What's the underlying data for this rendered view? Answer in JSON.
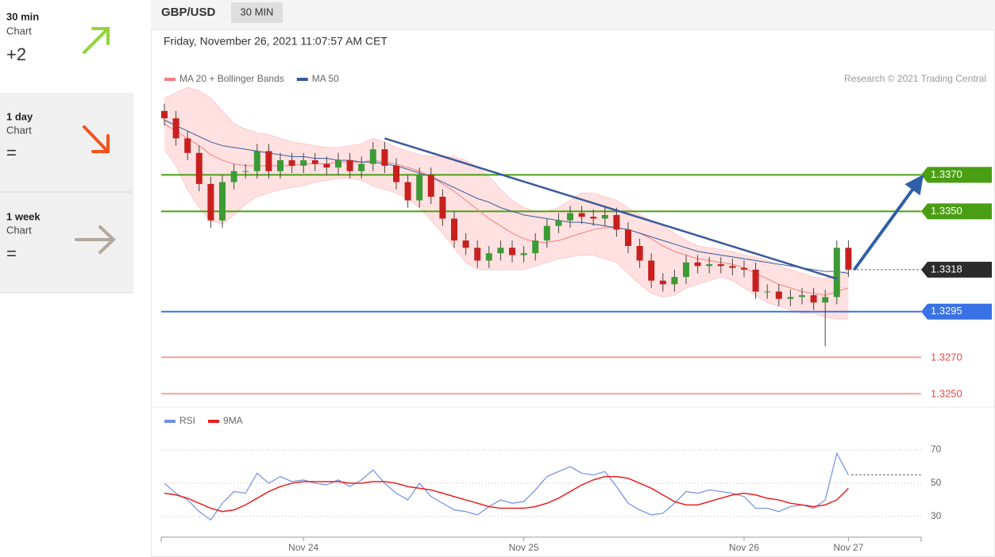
{
  "sidebar": [
    {
      "period": "30 min",
      "label": "Chart",
      "score": "+2"
    },
    {
      "period": "1 day",
      "label": "Chart",
      "score": "="
    },
    {
      "period": "1 week",
      "label": "Chart",
      "score": "="
    }
  ],
  "header": {
    "symbol": "GBP/USD",
    "interval": "30 MIN",
    "date": "Friday, November 26, 2021 11:07:57 AM CET"
  },
  "credit": "Research © 2021 Trading Central",
  "chart_data": [
    {
      "type": "candlestick",
      "up_color": "#3d9b35",
      "down_color": "#c8201e",
      "open": [
        1.3405,
        1.3401,
        1.339,
        1.3382,
        1.3365,
        1.3345,
        1.3366,
        1.3372,
        1.3372,
        1.3383,
        1.3372,
        1.3378,
        1.3375,
        1.3378,
        1.3376,
        1.3374,
        1.3378,
        1.3372,
        1.3376,
        1.3384,
        1.3375,
        1.3366,
        1.3356,
        1.337,
        1.3358,
        1.3346,
        1.3334,
        1.333,
        1.3323,
        1.3327,
        1.333,
        1.3326,
        1.3327,
        1.3334,
        1.3342,
        1.3345,
        1.3349,
        1.3347,
        1.3346,
        1.3348,
        1.334,
        1.3331,
        1.3323,
        1.3312,
        1.331,
        1.3314,
        1.3322,
        1.332,
        1.3321,
        1.332,
        1.3319,
        1.3318,
        1.3306,
        1.3306,
        1.3302,
        1.3303,
        1.3304,
        1.33,
        1.3303,
        1.333
      ],
      "high": [
        1.3409,
        1.3405,
        1.3394,
        1.3386,
        1.3369,
        1.337,
        1.3376,
        1.3376,
        1.3387,
        1.3387,
        1.3382,
        1.3382,
        1.3382,
        1.3382,
        1.338,
        1.3382,
        1.3382,
        1.338,
        1.3388,
        1.3388,
        1.3379,
        1.337,
        1.3374,
        1.3374,
        1.3362,
        1.335,
        1.3338,
        1.3334,
        1.3331,
        1.3334,
        1.3334,
        1.3331,
        1.3338,
        1.3346,
        1.3349,
        1.3353,
        1.3353,
        1.3351,
        1.3352,
        1.3352,
        1.3344,
        1.3335,
        1.3327,
        1.3316,
        1.3318,
        1.3326,
        1.3326,
        1.3325,
        1.3325,
        1.3324,
        1.3323,
        1.3322,
        1.331,
        1.331,
        1.3307,
        1.3308,
        1.3308,
        1.3307,
        1.3334,
        1.3334
      ],
      "low": [
        1.3397,
        1.3386,
        1.3378,
        1.3361,
        1.3341,
        1.3341,
        1.3362,
        1.3368,
        1.3368,
        1.3368,
        1.3368,
        1.3371,
        1.3371,
        1.3372,
        1.337,
        1.337,
        1.3368,
        1.3368,
        1.3372,
        1.3371,
        1.3362,
        1.3352,
        1.3352,
        1.3354,
        1.3342,
        1.333,
        1.3326,
        1.3319,
        1.3319,
        1.3323,
        1.3322,
        1.3322,
        1.3323,
        1.333,
        1.3338,
        1.3341,
        1.3343,
        1.3342,
        1.3342,
        1.3336,
        1.3327,
        1.3319,
        1.3308,
        1.3306,
        1.3306,
        1.331,
        1.3316,
        1.3316,
        1.3316,
        1.3315,
        1.3314,
        1.3302,
        1.3302,
        1.3298,
        1.3298,
        1.3299,
        1.3296,
        1.3276,
        1.3299,
        1.3314
      ],
      "close": [
        1.3401,
        1.339,
        1.3382,
        1.3365,
        1.3345,
        1.3366,
        1.3372,
        1.3372,
        1.3383,
        1.3372,
        1.3378,
        1.3375,
        1.3378,
        1.3376,
        1.3374,
        1.3378,
        1.3372,
        1.3376,
        1.3384,
        1.3375,
        1.3366,
        1.3356,
        1.337,
        1.3358,
        1.3346,
        1.3334,
        1.333,
        1.3323,
        1.3327,
        1.333,
        1.3326,
        1.3327,
        1.3334,
        1.3342,
        1.3345,
        1.3349,
        1.3347,
        1.3346,
        1.3348,
        1.334,
        1.3331,
        1.3323,
        1.3312,
        1.331,
        1.3314,
        1.3322,
        1.332,
        1.3321,
        1.332,
        1.3319,
        1.3318,
        1.3306,
        1.3306,
        1.3302,
        1.3303,
        1.3304,
        1.33,
        1.3303,
        1.333,
        1.3318
      ],
      "series": [
        {
          "name": "MA 20 + Bollinger Bands",
          "color": "#f47f7f",
          "values": [
            1.3398,
            1.3394,
            1.339,
            1.3386,
            1.3381,
            1.3378,
            1.3376,
            1.3375,
            1.3375,
            1.3375,
            1.3375,
            1.3375,
            1.3376,
            1.3376,
            1.3376,
            1.3377,
            1.3377,
            1.3377,
            1.3378,
            1.3377,
            1.3376,
            1.3374,
            1.3372,
            1.3369,
            1.3365,
            1.3361,
            1.3356,
            1.3351,
            1.3346,
            1.3342,
            1.3338,
            1.3335,
            1.3333,
            1.3333,
            1.3334,
            1.3336,
            1.3338,
            1.334,
            1.3341,
            1.3341,
            1.334,
            1.3338,
            1.3335,
            1.3331,
            1.3328,
            1.3326,
            1.3324,
            1.3323,
            1.3322,
            1.3321,
            1.3319,
            1.3316,
            1.3313,
            1.331,
            1.3308,
            1.3306,
            1.3305,
            1.3304,
            1.3306,
            1.3308
          ]
        },
        {
          "name": "MA 50",
          "color": "#34589a",
          "values": [
            1.34,
            1.3397,
            1.3394,
            1.3391,
            1.3388,
            1.3386,
            1.3385,
            1.3384,
            1.3383,
            1.3382,
            1.3381,
            1.338,
            1.338,
            1.3379,
            1.3379,
            1.3378,
            1.3378,
            1.3377,
            1.3377,
            1.3376,
            1.3375,
            1.3373,
            1.3371,
            1.3369,
            1.3366,
            1.3363,
            1.336,
            1.3357,
            1.3355,
            1.3352,
            1.335,
            1.3348,
            1.3347,
            1.3346,
            1.3345,
            1.3344,
            1.3344,
            1.3343,
            1.3342,
            1.3341,
            1.334,
            1.3338,
            1.3336,
            1.3334,
            1.3332,
            1.333,
            1.3328,
            1.3327,
            1.3326,
            1.3325,
            1.3324,
            1.3323,
            1.3322,
            1.3321,
            1.332,
            1.3319,
            1.3318,
            1.3317,
            1.3317,
            1.3316
          ]
        }
      ],
      "band": {
        "color": "#ffc9c9",
        "upper": [
          1.3412,
          1.3415,
          1.3418,
          1.3416,
          1.3412,
          1.3405,
          1.3398,
          1.3395,
          1.3393,
          1.3392,
          1.339,
          1.3388,
          1.3387,
          1.3386,
          1.3385,
          1.3385,
          1.3386,
          1.3387,
          1.339,
          1.3388,
          1.3385,
          1.3383,
          1.3381,
          1.338,
          1.338,
          1.338,
          1.3378,
          1.3374,
          1.3369,
          1.3362,
          1.3356,
          1.3352,
          1.335,
          1.335,
          1.3352,
          1.3356,
          1.336,
          1.336,
          1.3358,
          1.3356,
          1.3352,
          1.3348,
          1.3345,
          1.3342,
          1.3338,
          1.3334,
          1.3331,
          1.333,
          1.3329,
          1.3328,
          1.3326,
          1.3325,
          1.3323,
          1.332,
          1.3318,
          1.3316,
          1.3314,
          1.3313,
          1.3315,
          1.3318
        ],
        "lower": [
          1.3384,
          1.3375,
          1.3362,
          1.3352,
          1.3345,
          1.3343,
          1.3348,
          1.3354,
          1.3358,
          1.336,
          1.3362,
          1.3363,
          1.3364,
          1.3366,
          1.3367,
          1.3368,
          1.3368,
          1.3367,
          1.3364,
          1.3362,
          1.336,
          1.3357,
          1.3352,
          1.3345,
          1.3338,
          1.333,
          1.3322,
          1.3318,
          1.3318,
          1.3318,
          1.3318,
          1.3318,
          1.332,
          1.3322,
          1.3324,
          1.3325,
          1.3326,
          1.3326,
          1.3324,
          1.3322,
          1.3316,
          1.331,
          1.3305,
          1.3303,
          1.3304,
          1.3308,
          1.331,
          1.3312,
          1.3314,
          1.3312,
          1.3308,
          1.3304,
          1.33,
          1.3298,
          1.3296,
          1.3294,
          1.3294,
          1.3292,
          1.3291,
          1.3291
        ]
      },
      "ylim": [
        1.3244,
        1.3418
      ],
      "levels": [
        {
          "value": 1.337,
          "label": "1.3370"
        },
        {
          "value": 1.335,
          "label": "1.3350"
        },
        1.3318,
        1.3295,
        {
          "value": 1.327,
          "label": "1.3270"
        },
        {
          "value": 1.325,
          "label": "1.3250"
        }
      ],
      "level_colors": [
        "#4a9e14",
        "#4a9e14",
        "#2b2b2b",
        "#3a72e6",
        "#e84545",
        "#e84545"
      ],
      "level_boxed": [
        true,
        true,
        true,
        true,
        false,
        false
      ],
      "level_styles": [
        "solid",
        "solid",
        "dotted",
        "solid",
        "solid",
        "solid"
      ],
      "trendline": {
        "color": "#3c5a9a",
        "from": [
          19,
          1.339
        ],
        "to": [
          58,
          1.3313
        ]
      },
      "arrow": {
        "color": "#2f5fa8",
        "from": [
          59.5,
          1.3318
        ],
        "to": [
          65,
          1.3366
        ]
      }
    },
    {
      "type": "line",
      "categories": [
        null,
        null,
        null,
        null,
        null,
        null,
        null,
        null,
        null,
        null,
        null,
        null,
        "Nov 24",
        null,
        null,
        null,
        null,
        null,
        null,
        null,
        null,
        null,
        null,
        null,
        null,
        null,
        null,
        null,
        null,
        null,
        null,
        "Nov 25",
        null,
        null,
        null,
        null,
        null,
        null,
        null,
        null,
        null,
        null,
        null,
        null,
        null,
        null,
        null,
        null,
        null,
        null,
        "Nov 26",
        null,
        null,
        null,
        null,
        null,
        null,
        null,
        null,
        "Nov 27"
      ],
      "series": [
        {
          "name": "RSI",
          "color": "#6f8fe0",
          "values": [
            50,
            44,
            40,
            33,
            28,
            38,
            45,
            44,
            56,
            50,
            54,
            51,
            52,
            50,
            49,
            52,
            48,
            52,
            58,
            50,
            44,
            40,
            50,
            42,
            38,
            34,
            33,
            31,
            36,
            40,
            38,
            39,
            46,
            54,
            57,
            60,
            56,
            55,
            57,
            48,
            38,
            34,
            31,
            32,
            38,
            45,
            44,
            46,
            45,
            44,
            42,
            35,
            35,
            33,
            36,
            37,
            35,
            40,
            68,
            55
          ]
        },
        {
          "name": "9MA",
          "color": "#e82020",
          "values": [
            44,
            43,
            41,
            38,
            35,
            33,
            34,
            37,
            41,
            45,
            48,
            50,
            51,
            51,
            51,
            51,
            50,
            50,
            51,
            51,
            50,
            48,
            47,
            46,
            44,
            42,
            40,
            38,
            36,
            35,
            35,
            35,
            36,
            38,
            41,
            45,
            49,
            52,
            54,
            54,
            53,
            50,
            47,
            43,
            39,
            37,
            37,
            39,
            41,
            43,
            44,
            43,
            41,
            40,
            38,
            37,
            36,
            37,
            40,
            47
          ]
        }
      ],
      "ylim": [
        18.6,
        92.4
      ],
      "yticks": [
        30,
        50,
        70
      ]
    }
  ]
}
